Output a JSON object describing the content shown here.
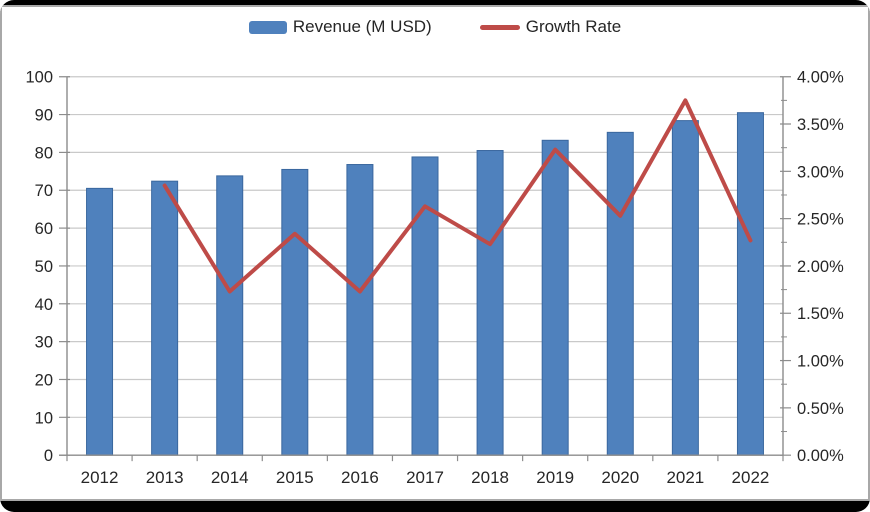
{
  "colors": {
    "bar_fill": "#4F81BD",
    "bar_stroke": "#3A679E",
    "line": "#BE4B48",
    "grid": "#C9C9C9",
    "axis": "#8C8C8C",
    "text": "#262626",
    "chart_border": "#A8A8A8",
    "frame": "#000000",
    "background": "#FFFFFF"
  },
  "chart_data": {
    "type": "combo",
    "subtype": "bar+line",
    "title": "",
    "categories": [
      "2012",
      "2013",
      "2014",
      "2015",
      "2016",
      "2017",
      "2018",
      "2019",
      "2020",
      "2021",
      "2022"
    ],
    "series": [
      {
        "name": "Revenue (M USD)",
        "type": "bar",
        "axis": "left",
        "color": "#4F81BD",
        "values": [
          70.5,
          72.4,
          73.8,
          75.5,
          76.8,
          78.8,
          80.5,
          83.2,
          85.3,
          88.4,
          90.5
        ]
      },
      {
        "name": "Growth Rate",
        "type": "line",
        "axis": "right",
        "color": "#BE4B48",
        "unit": "%",
        "values": [
          null,
          2.85,
          1.73,
          2.34,
          1.73,
          2.63,
          2.23,
          3.23,
          2.53,
          3.75,
          2.27
        ]
      }
    ],
    "left_axis": {
      "min": 0,
      "max": 100,
      "step": 10,
      "tick_labels": [
        "0",
        "10",
        "20",
        "30",
        "40",
        "50",
        "60",
        "70",
        "80",
        "90",
        "100"
      ]
    },
    "right_axis": {
      "min": 0,
      "max": 4,
      "step": 0.5,
      "minor_step": 0.25,
      "tick_labels": [
        "0.00%",
        "0.50%",
        "1.00%",
        "1.50%",
        "2.00%",
        "2.50%",
        "3.00%",
        "3.50%",
        "4.00%"
      ]
    },
    "grid": true,
    "legend_position": "top"
  }
}
